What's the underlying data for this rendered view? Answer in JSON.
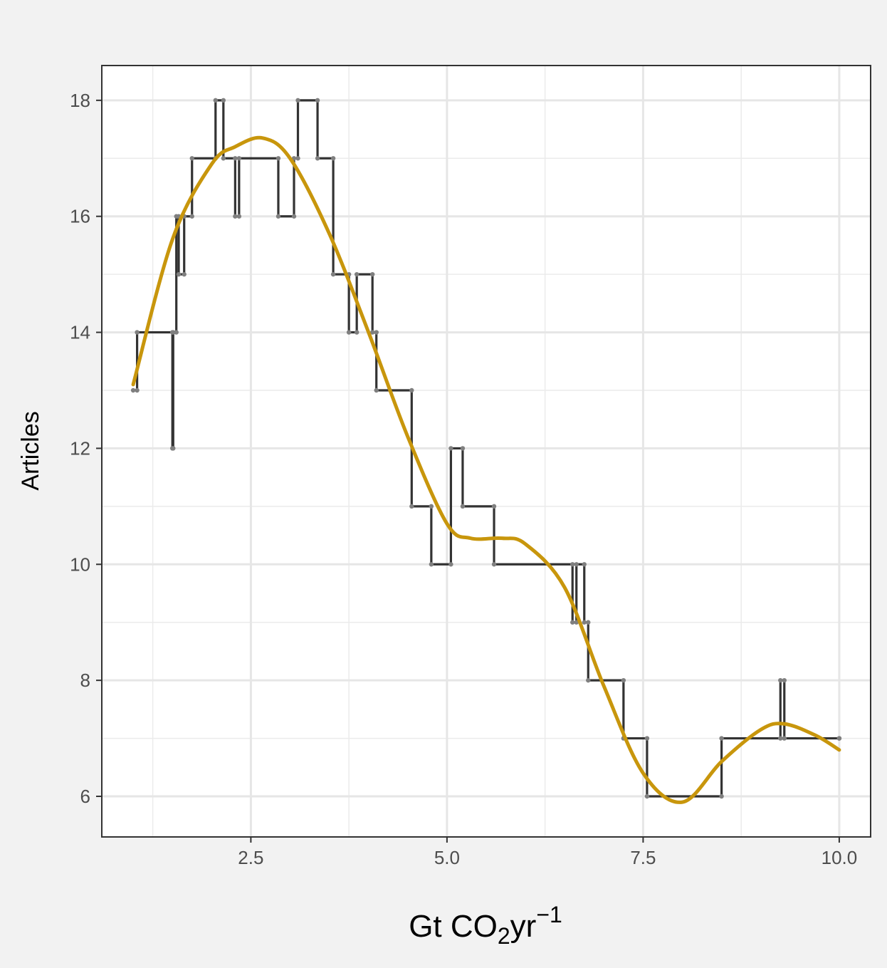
{
  "chart_data": {
    "type": "line",
    "xlabel": "Gt CO2yr−1",
    "xlabel_parts": {
      "base": "Gt CO",
      "sub": "2",
      "unit": "yr",
      "sup": "−1"
    },
    "ylabel": "Articles",
    "xlim": [
      0.6,
      10.4
    ],
    "ylim": [
      5.3,
      18.6
    ],
    "x_ticks": [
      2.5,
      5.0,
      7.5,
      10.0
    ],
    "x_tick_labels": [
      "2.5",
      "5.0",
      "7.5",
      "10.0"
    ],
    "y_ticks": [
      6,
      8,
      10,
      12,
      14,
      16,
      18
    ],
    "y_tick_labels": [
      "6",
      "8",
      "10",
      "12",
      "14",
      "16",
      "18"
    ],
    "grid": true,
    "series": [
      {
        "style": "step",
        "color": "#333333",
        "marker_color": "#7f7f7f",
        "x": [
          1.0,
          1.05,
          1.5,
          1.51,
          1.55,
          1.58,
          1.65,
          1.75,
          2.05,
          2.15,
          2.3,
          2.35,
          2.85,
          3.05,
          3.1,
          3.35,
          3.55,
          3.75,
          3.85,
          4.05,
          4.1,
          4.55,
          4.8,
          5.05,
          5.2,
          5.6,
          6.6,
          6.65,
          6.75,
          6.8,
          7.25,
          7.55,
          8.5,
          9.25,
          9.3,
          10.0
        ],
        "values": [
          13,
          14,
          12,
          14,
          16,
          15,
          16,
          17,
          18,
          17,
          16,
          17,
          16,
          17,
          18,
          17,
          15,
          14,
          15,
          14,
          13,
          11,
          10,
          12,
          11,
          10,
          9,
          10,
          9,
          8,
          7,
          6,
          7,
          8,
          7,
          7
        ]
      },
      {
        "style": "smooth",
        "color": "#c8960c",
        "x": [
          1.0,
          1.5,
          2.0,
          2.3,
          2.65,
          3.0,
          3.5,
          4.0,
          4.5,
          5.0,
          5.3,
          5.7,
          6.0,
          6.5,
          7.0,
          7.5,
          8.0,
          8.5,
          9.0,
          9.3,
          9.7,
          10.0
        ],
        "values": [
          13.1,
          15.6,
          16.9,
          17.2,
          17.35,
          17.0,
          15.7,
          14.0,
          12.2,
          10.7,
          10.45,
          10.45,
          10.35,
          9.6,
          7.9,
          6.4,
          5.9,
          6.6,
          7.15,
          7.25,
          7.05,
          6.8
        ]
      }
    ]
  }
}
